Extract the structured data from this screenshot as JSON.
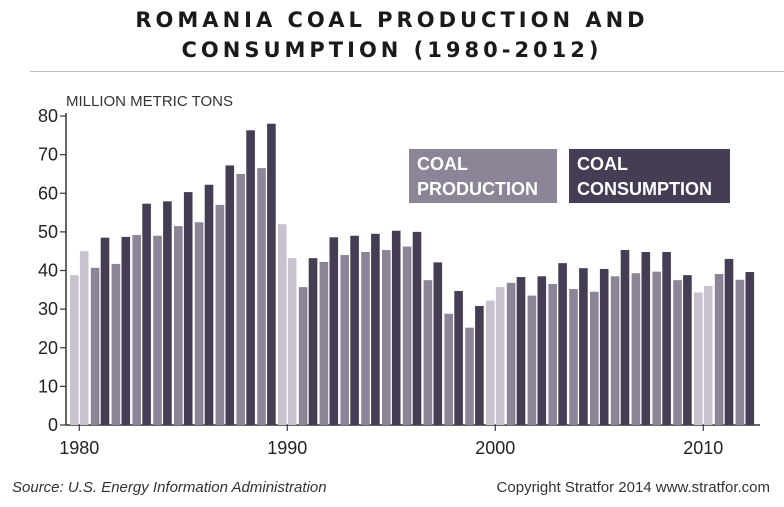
{
  "title_line1": "ROMANIA COAL PRODUCTION AND",
  "title_line2": "CONSUMPTION (1980-2012)",
  "footer": {
    "source": "Source: U.S. Energy Information Administration",
    "copyright": "Copyright Stratfor 2014   www.stratfor.com"
  },
  "colors": {
    "production": "#8c8597",
    "consumption": "#453d53",
    "forecast_highlight": "#c7c2cd",
    "axis": "#333333"
  },
  "chart_data": {
    "type": "bar",
    "ylabel": "MILLION METRIC TONS",
    "xlabel": "",
    "ylim": [
      0,
      80
    ],
    "yticks": [
      0,
      10,
      20,
      30,
      40,
      50,
      60,
      70,
      80
    ],
    "xticks": [
      1980,
      1990,
      2000,
      2010
    ],
    "grid": false,
    "legend_placement": "top-right",
    "categories": [
      1980,
      1981,
      1982,
      1983,
      1984,
      1985,
      1986,
      1987,
      1988,
      1989,
      1990,
      1991,
      1992,
      1993,
      1994,
      1995,
      1996,
      1997,
      1998,
      1999,
      2000,
      2001,
      2002,
      2003,
      2004,
      2005,
      2006,
      2007,
      2008,
      2009,
      2010,
      2011,
      2012
    ],
    "series": [
      {
        "name": "COAL PRODUCTION",
        "values": [
          38.8,
          40.7,
          41.7,
          49.2,
          49.0,
          51.5,
          52.5,
          57.0,
          65.0,
          66.5,
          52.0,
          35.7,
          42.2,
          44.0,
          44.8,
          45.3,
          46.2,
          37.5,
          28.8,
          25.2,
          32.2,
          36.8,
          33.5,
          36.5,
          35.2,
          34.5,
          38.5,
          39.3,
          39.7,
          37.5,
          34.3,
          39.1,
          37.6
        ]
      },
      {
        "name": "COAL CONSUMPTION",
        "values": [
          45.0,
          48.5,
          48.7,
          57.3,
          57.9,
          60.3,
          62.2,
          67.2,
          76.3,
          78.0,
          43.2,
          43.2,
          48.6,
          49.0,
          49.5,
          50.3,
          50.0,
          42.1,
          34.7,
          30.8,
          35.7,
          38.3,
          38.5,
          41.9,
          40.6,
          40.4,
          45.3,
          44.8,
          44.8,
          38.8,
          36.0,
          43.0,
          39.6
        ]
      }
    ]
  }
}
